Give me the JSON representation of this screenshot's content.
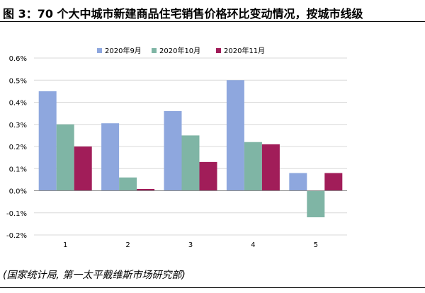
{
  "title": "图 3：70 个大中城市新建商品住宅销售价格环比变动情况，按城市线级",
  "source": "(国家统计局, 第一太平戴维斯市场研究部)",
  "chart_data": {
    "type": "bar",
    "categories": [
      "1",
      "2",
      "3",
      "4",
      "5"
    ],
    "series": [
      {
        "name": "2020年9月",
        "color": "#8ea7de",
        "values": [
          0.45,
          0.305,
          0.36,
          0.5,
          0.08
        ]
      },
      {
        "name": "2020年10月",
        "color": "#7fb5a5",
        "values": [
          0.3,
          0.06,
          0.25,
          0.22,
          -0.12
        ]
      },
      {
        "name": "2020年11月",
        "color": "#a11d59",
        "values": [
          0.2,
          0.008,
          0.13,
          0.21,
          0.08
        ]
      }
    ],
    "y_ticks": [
      "0.6%",
      "0.5%",
      "0.4%",
      "0.3%",
      "0.2%",
      "0.1%",
      "0.0%",
      "-0.1%",
      "-0.2%"
    ],
    "y_tick_values": [
      0.6,
      0.5,
      0.4,
      0.3,
      0.2,
      0.1,
      0.0,
      -0.1,
      -0.2
    ],
    "ylim": [
      -0.2,
      0.6
    ],
    "grid": true,
    "legend_position": "top-center",
    "xlabel": "",
    "ylabel": ""
  }
}
